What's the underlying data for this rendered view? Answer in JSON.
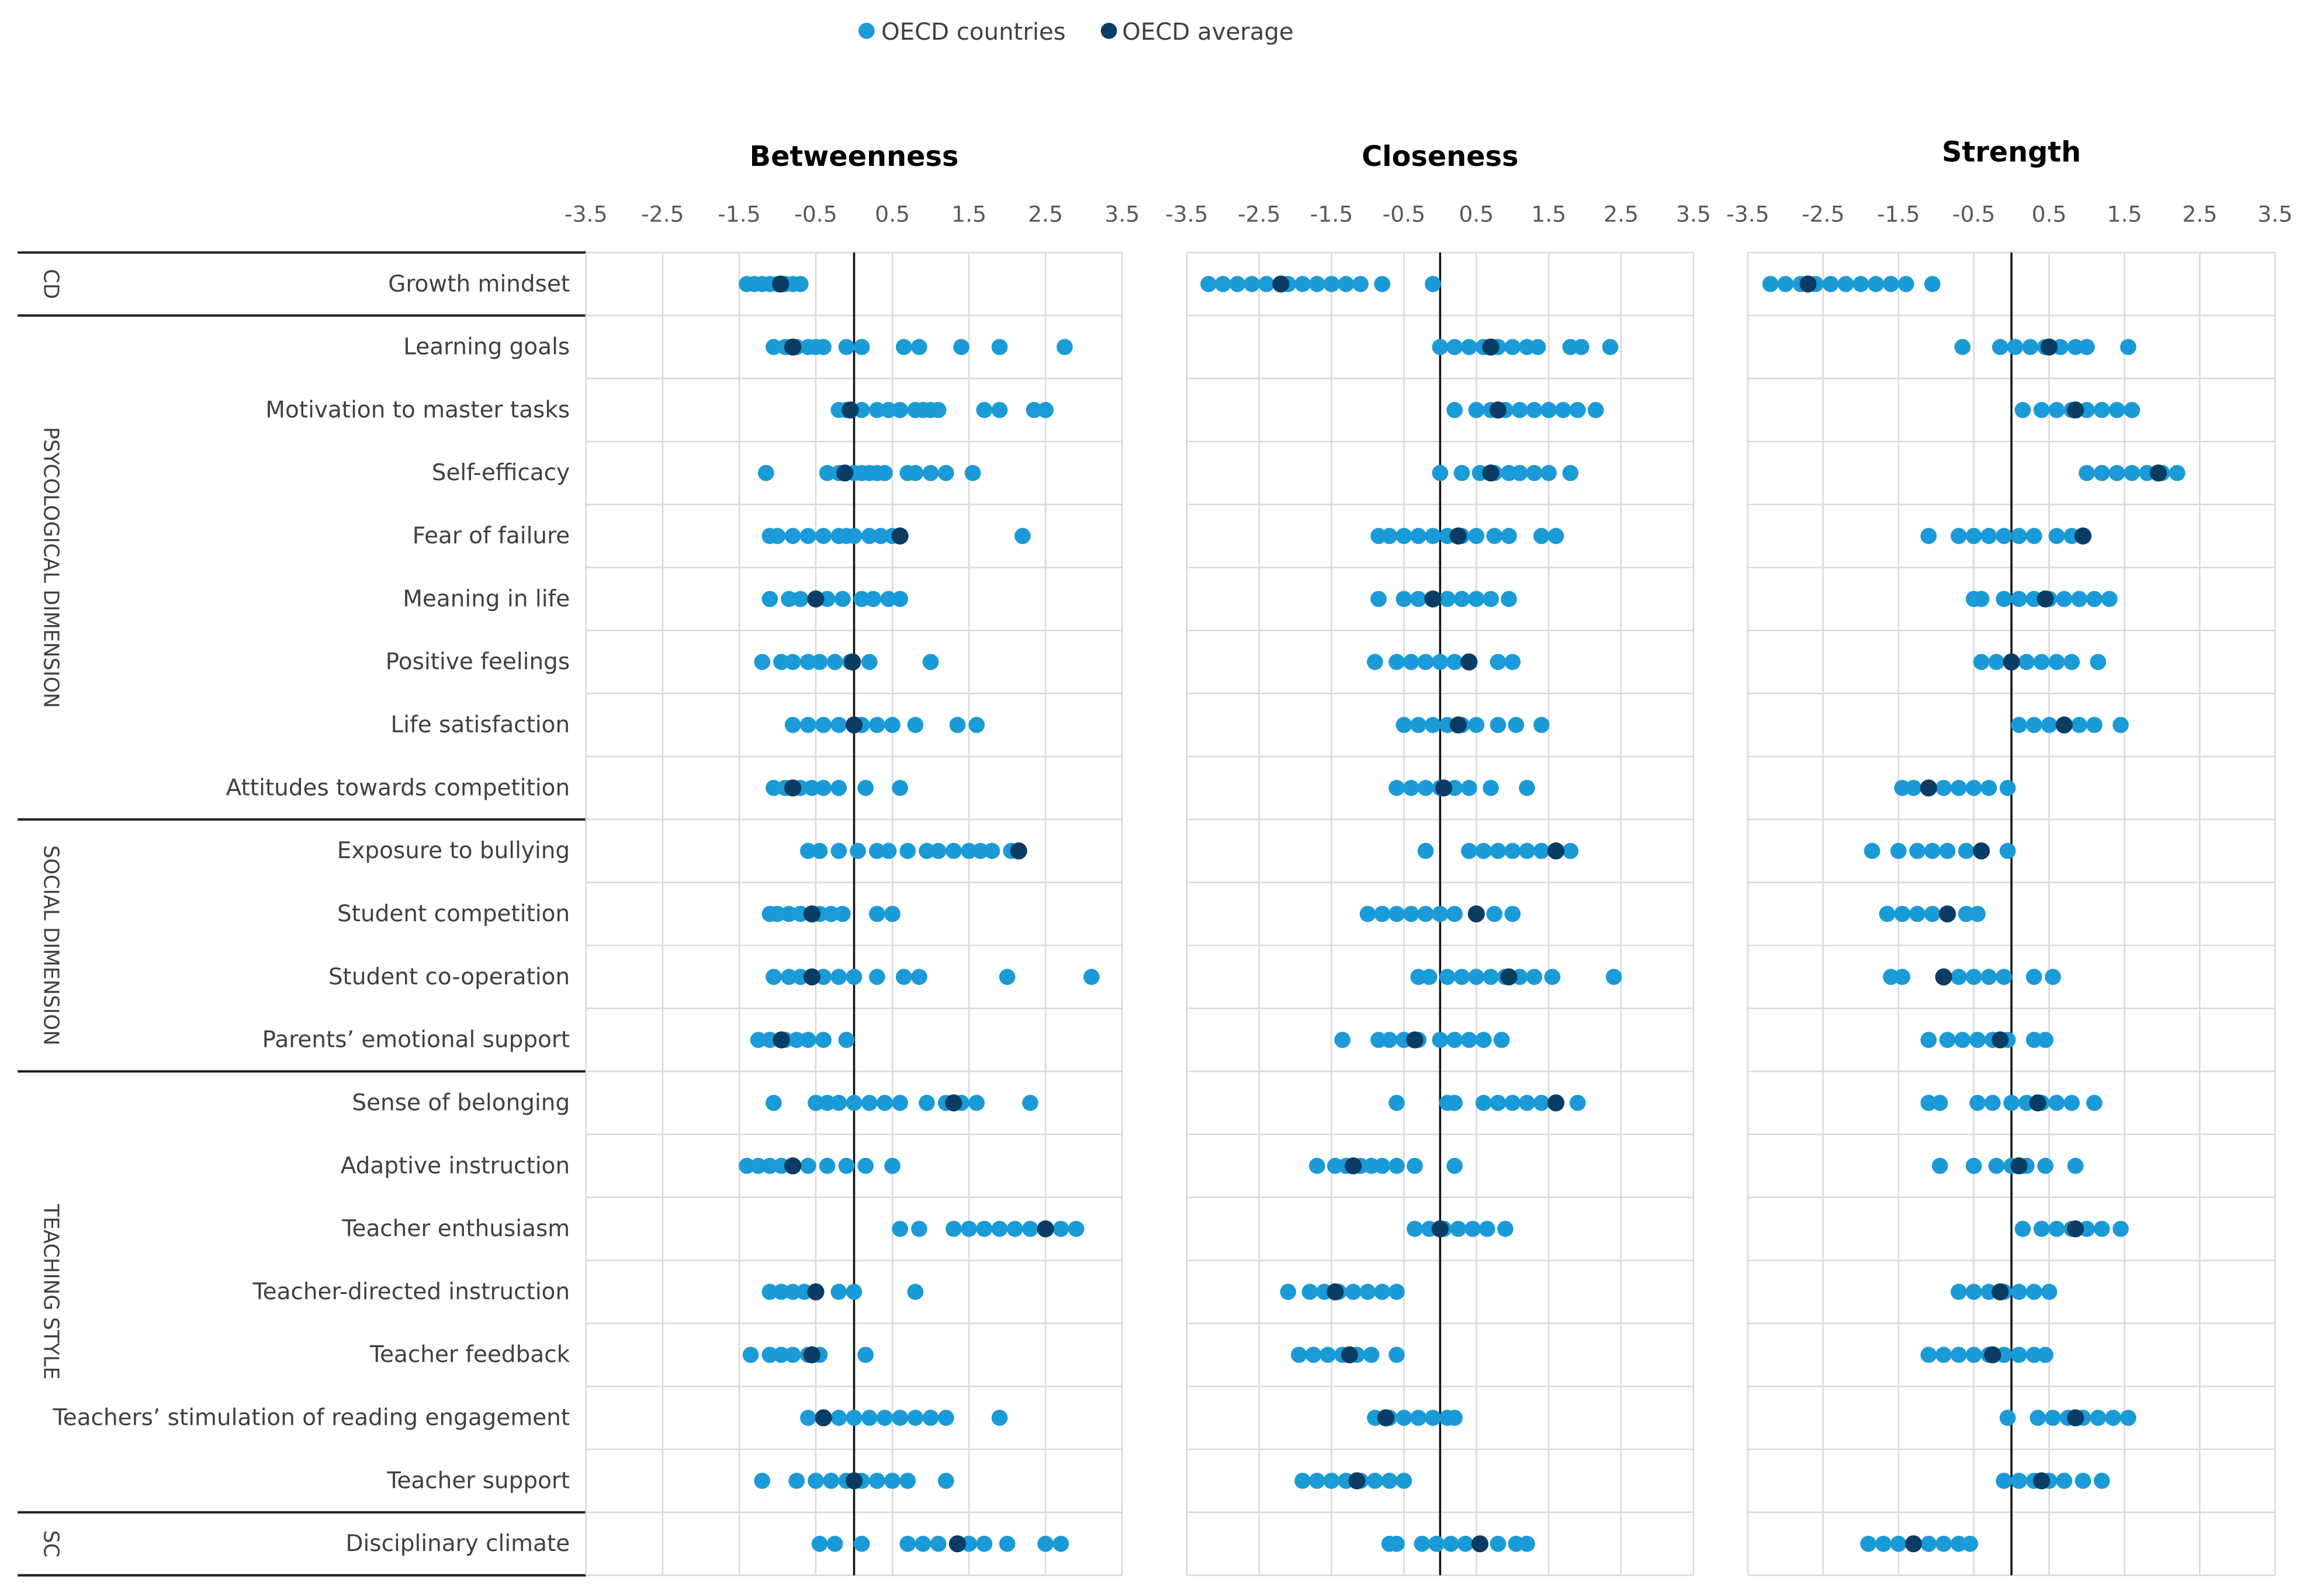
{
  "chart_data": {
    "type": "scatter",
    "legend": {
      "placement": "top-center",
      "entries": [
        {
          "label": "OECD countries",
          "color": "#1a9ad6"
        },
        {
          "label": "OECD average",
          "color": "#0b3d64"
        }
      ]
    },
    "x_ticks": [
      "-3.5",
      "-2.5",
      "-1.5",
      "-0.5",
      "0.5",
      "1.5",
      "2.5",
      "3.5"
    ],
    "xlim": [
      -3.5,
      3.5
    ],
    "grid": true,
    "groups": [
      {
        "label": "CD",
        "rows": [
          0
        ]
      },
      {
        "label": "PSYCOLOGICAL DIMENSION",
        "rows": [
          1,
          2,
          3,
          4,
          5,
          6,
          7,
          8
        ]
      },
      {
        "label": "SOCIAL DIMENSION",
        "rows": [
          9,
          10,
          11,
          12
        ]
      },
      {
        "label": "TEACHING STYLE",
        "rows": [
          13,
          14,
          15,
          16,
          17,
          18,
          19
        ]
      },
      {
        "label": "SC",
        "rows": [
          20
        ]
      }
    ],
    "rows": [
      "Growth mindset",
      "Learning goals",
      "Motivation to master tasks",
      "Self-efficacy",
      "Fear of failure",
      "Meaning in life",
      "Positive feelings",
      "Life satisfaction",
      "Attitudes towards competition",
      "Exposure to bullying",
      "Student competition",
      "Student co-operation",
      "Parents’ emotional support",
      "Sense of belonging",
      "Adaptive instruction",
      "Teacher enthusiasm",
      "Teacher-directed instruction",
      "Teacher feedback",
      "Teachers’ stimulation of reading engagement",
      "Teacher support",
      "Disciplinary climate"
    ],
    "panels": [
      {
        "title": "Betweenness",
        "average": [
          -0.96,
          -0.8,
          -0.05,
          -0.12,
          0.6,
          -0.5,
          -0.02,
          0.0,
          -0.8,
          2.15,
          -0.55,
          -0.55,
          -0.95,
          1.3,
          -0.8,
          2.5,
          -0.5,
          -0.55,
          -0.4,
          0.0,
          1.35
        ],
        "countries": [
          [
            -1.4,
            -1.3,
            -1.2,
            -1.1,
            -1.0,
            -0.9,
            -0.8,
            -0.7
          ],
          [
            -1.05,
            -0.9,
            -0.75,
            -0.6,
            -0.5,
            -0.4,
            -0.1,
            0.1,
            0.65,
            0.85,
            1.4,
            1.9,
            2.75
          ],
          [
            -0.2,
            -0.1,
            0.1,
            0.3,
            0.45,
            0.6,
            0.8,
            0.9,
            1.0,
            1.1,
            1.7,
            1.9,
            2.35,
            2.5
          ],
          [
            -1.15,
            -0.35,
            -0.2,
            0.0,
            0.1,
            0.2,
            0.3,
            0.4,
            0.7,
            0.8,
            1.0,
            1.2,
            1.55
          ],
          [
            -1.1,
            -1.0,
            -0.8,
            -0.6,
            -0.4,
            -0.2,
            -0.1,
            0.0,
            0.2,
            0.35,
            0.5,
            2.2
          ],
          [
            -1.1,
            -0.85,
            -0.7,
            -0.5,
            -0.35,
            -0.15,
            0.1,
            0.25,
            0.45,
            0.6
          ],
          [
            -1.2,
            -0.95,
            -0.8,
            -0.6,
            -0.45,
            -0.25,
            -0.05,
            0.2,
            1.0
          ],
          [
            -0.8,
            -0.6,
            -0.4,
            -0.2,
            0.1,
            0.3,
            0.5,
            0.8,
            1.35,
            1.6
          ],
          [
            -1.05,
            -0.9,
            -0.7,
            -0.55,
            -0.4,
            -0.2,
            0.15,
            0.6
          ],
          [
            -0.6,
            -0.45,
            -0.2,
            0.05,
            0.3,
            0.45,
            0.7,
            0.95,
            1.1,
            1.3,
            1.5,
            1.65,
            1.8,
            2.05
          ],
          [
            -1.1,
            -1.0,
            -0.85,
            -0.7,
            -0.45,
            -0.3,
            -0.15,
            0.3,
            0.5
          ],
          [
            -1.05,
            -0.85,
            -0.7,
            -0.4,
            -0.2,
            0.0,
            0.3,
            0.65,
            0.85,
            2.0,
            3.1
          ],
          [
            -1.25,
            -1.1,
            -0.9,
            -0.75,
            -0.6,
            -0.4,
            -0.1
          ],
          [
            -1.05,
            -0.5,
            -0.35,
            -0.2,
            0.0,
            0.2,
            0.4,
            0.6,
            0.95,
            1.2,
            1.4,
            1.6,
            2.3
          ],
          [
            -1.4,
            -1.25,
            -1.1,
            -0.95,
            -0.8,
            -0.6,
            -0.35,
            -0.1,
            0.15,
            0.5
          ],
          [
            0.6,
            0.85,
            1.3,
            1.5,
            1.7,
            1.9,
            2.1,
            2.3,
            2.5,
            2.7,
            2.9
          ],
          [
            -1.1,
            -0.95,
            -0.8,
            -0.65,
            -0.5,
            -0.2,
            0.0,
            0.8
          ],
          [
            -1.35,
            -1.1,
            -0.95,
            -0.8,
            -0.6,
            -0.45,
            0.15
          ],
          [
            -0.6,
            -0.4,
            -0.2,
            0.0,
            0.2,
            0.4,
            0.6,
            0.8,
            1.0,
            1.2,
            1.9
          ],
          [
            -1.2,
            -0.75,
            -0.5,
            -0.3,
            -0.1,
            0.1,
            0.3,
            0.5,
            0.7,
            1.2
          ],
          [
            -0.45,
            -0.25,
            0.1,
            0.7,
            0.9,
            1.1,
            1.5,
            1.7,
            2.0,
            2.5,
            2.7
          ]
        ]
      },
      {
        "title": "Closeness",
        "average": [
          -2.2,
          0.7,
          0.8,
          0.7,
          0.25,
          -0.1,
          0.4,
          0.25,
          0.05,
          1.6,
          0.5,
          0.95,
          -0.35,
          1.6,
          -1.2,
          0.0,
          -1.45,
          -1.25,
          -0.75,
          -1.15,
          0.55
        ],
        "countries": [
          [
            -3.2,
            -3.0,
            -2.8,
            -2.6,
            -2.4,
            -2.1,
            -1.9,
            -1.7,
            -1.5,
            -1.3,
            -1.1,
            -0.8,
            -0.1
          ],
          [
            0.0,
            0.2,
            0.4,
            0.6,
            0.8,
            1.0,
            1.2,
            1.35,
            1.8,
            1.95,
            2.35
          ],
          [
            0.2,
            0.5,
            0.7,
            0.9,
            1.1,
            1.3,
            1.5,
            1.7,
            1.9,
            2.15
          ],
          [
            0.0,
            0.3,
            0.55,
            0.75,
            0.95,
            1.1,
            1.3,
            1.5,
            1.8
          ],
          [
            -0.85,
            -0.7,
            -0.5,
            -0.3,
            -0.1,
            0.1,
            0.3,
            0.5,
            0.75,
            0.95,
            1.4,
            1.6
          ],
          [
            -0.85,
            -0.5,
            -0.3,
            -0.1,
            0.1,
            0.3,
            0.5,
            0.7,
            0.95
          ],
          [
            -0.9,
            -0.6,
            -0.4,
            -0.2,
            0.0,
            0.2,
            0.4,
            0.8,
            1.0
          ],
          [
            -0.5,
            -0.3,
            -0.1,
            0.1,
            0.3,
            0.5,
            0.8,
            1.05,
            1.4
          ],
          [
            -0.6,
            -0.4,
            -0.2,
            0.0,
            0.2,
            0.4,
            0.7,
            1.2
          ],
          [
            -0.2,
            0.4,
            0.6,
            0.8,
            1.0,
            1.2,
            1.4,
            1.6,
            1.8
          ],
          [
            -1.0,
            -0.8,
            -0.6,
            -0.4,
            -0.2,
            0.0,
            0.2,
            0.5,
            0.75,
            1.0
          ],
          [
            -0.3,
            -0.15,
            0.1,
            0.3,
            0.5,
            0.7,
            0.9,
            1.1,
            1.3,
            1.55,
            2.4
          ],
          [
            -1.35,
            -0.85,
            -0.7,
            -0.5,
            -0.3,
            0.0,
            0.2,
            0.4,
            0.6,
            0.85
          ],
          [
            -0.6,
            0.1,
            0.2,
            0.6,
            0.8,
            1.0,
            1.2,
            1.4,
            1.6,
            1.9
          ],
          [
            -1.7,
            -1.45,
            -1.3,
            -1.1,
            -0.95,
            -0.8,
            -0.6,
            -0.35,
            0.2
          ],
          [
            -0.35,
            -0.15,
            0.05,
            0.25,
            0.45,
            0.65,
            0.9
          ],
          [
            -2.1,
            -1.8,
            -1.6,
            -1.4,
            -1.2,
            -1.0,
            -0.8,
            -0.6
          ],
          [
            -1.95,
            -1.75,
            -1.55,
            -1.35,
            -1.15,
            -0.95,
            -0.6
          ],
          [
            -0.9,
            -0.7,
            -0.5,
            -0.3,
            -0.1,
            0.1,
            0.2
          ],
          [
            -1.9,
            -1.7,
            -1.5,
            -1.3,
            -1.1,
            -0.9,
            -0.7,
            -0.5
          ],
          [
            -0.7,
            -0.6,
            -0.25,
            -0.05,
            0.15,
            0.35,
            0.55,
            0.8,
            1.05,
            1.2
          ]
        ]
      },
      {
        "title": "Strength",
        "average": [
          -2.7,
          0.5,
          0.85,
          1.95,
          0.95,
          0.45,
          0.0,
          0.7,
          -1.1,
          -0.4,
          -0.85,
          -0.9,
          -0.15,
          0.35,
          0.1,
          0.85,
          -0.15,
          -0.25,
          0.85,
          0.4,
          -1.3
        ],
        "countries": [
          [
            -3.2,
            -3.0,
            -2.8,
            -2.6,
            -2.4,
            -2.2,
            -2.0,
            -1.8,
            -1.6,
            -1.4,
            -1.05
          ],
          [
            -0.65,
            -0.15,
            0.05,
            0.25,
            0.45,
            0.65,
            0.85,
            1.0,
            1.55
          ],
          [
            0.15,
            0.4,
            0.6,
            0.8,
            1.0,
            1.2,
            1.4,
            1.6
          ],
          [
            1.0,
            1.2,
            1.4,
            1.6,
            1.8,
            2.0,
            2.2
          ],
          [
            -1.1,
            -0.7,
            -0.5,
            -0.3,
            -0.1,
            0.1,
            0.3,
            0.6,
            0.8,
            0.95
          ],
          [
            -0.5,
            -0.4,
            -0.1,
            0.1,
            0.3,
            0.5,
            0.7,
            0.9,
            1.1,
            1.3
          ],
          [
            -0.4,
            -0.2,
            0.0,
            0.2,
            0.4,
            0.6,
            0.8,
            1.15
          ],
          [
            0.1,
            0.3,
            0.5,
            0.7,
            0.9,
            1.1,
            1.45
          ],
          [
            -1.45,
            -1.3,
            -1.1,
            -0.9,
            -0.7,
            -0.5,
            -0.3,
            -0.05
          ],
          [
            -1.85,
            -1.5,
            -1.25,
            -1.05,
            -0.85,
            -0.6,
            -0.4,
            -0.05
          ],
          [
            -1.65,
            -1.45,
            -1.25,
            -1.05,
            -0.85,
            -0.6,
            -0.45
          ],
          [
            -1.6,
            -1.45,
            -0.9,
            -0.7,
            -0.5,
            -0.3,
            -0.1,
            0.3,
            0.55
          ],
          [
            -1.1,
            -0.85,
            -0.65,
            -0.45,
            -0.25,
            -0.05,
            0.3,
            0.45
          ],
          [
            -1.1,
            -0.95,
            -0.45,
            -0.25,
            0.0,
            0.2,
            0.4,
            0.6,
            0.8,
            1.1
          ],
          [
            -0.95,
            -0.5,
            -0.2,
            0.0,
            0.2,
            0.45,
            0.85
          ],
          [
            0.15,
            0.4,
            0.6,
            0.8,
            1.0,
            1.2,
            1.45
          ],
          [
            -0.7,
            -0.5,
            -0.3,
            -0.1,
            0.1,
            0.3,
            0.5
          ],
          [
            -1.1,
            -0.9,
            -0.7,
            -0.5,
            -0.3,
            -0.1,
            0.1,
            0.3,
            0.45
          ],
          [
            -0.05,
            0.35,
            0.55,
            0.75,
            0.95,
            1.15,
            1.35,
            1.55
          ],
          [
            -0.1,
            0.1,
            0.3,
            0.5,
            0.7,
            0.95,
            1.2
          ],
          [
            -1.9,
            -1.7,
            -1.5,
            -1.3,
            -1.1,
            -0.9,
            -0.7,
            -0.55
          ]
        ]
      }
    ]
  }
}
